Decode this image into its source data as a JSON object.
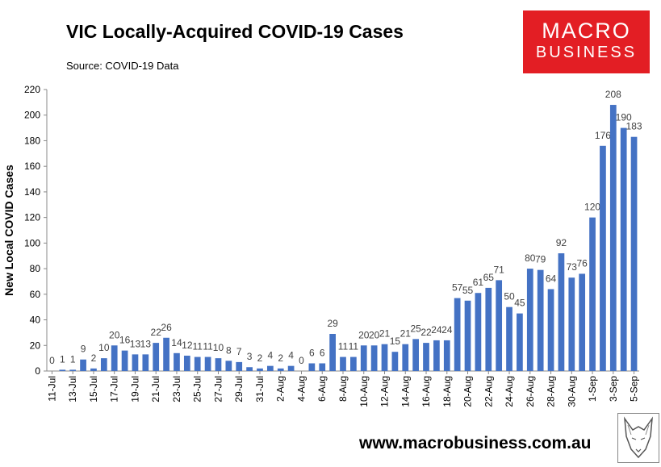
{
  "header": {
    "title": "VIC Locally-Acquired COVID-19 Cases",
    "source": "Source: COVID-19 Data"
  },
  "logo": {
    "line1": "MACRO",
    "line2": "BUSINESS",
    "color": "#e31e24"
  },
  "footer": {
    "url": "www.macrobusiness.com.au"
  },
  "chart_data": {
    "type": "bar",
    "title": "VIC Locally-Acquired COVID-19 Cases",
    "xlabel": "",
    "ylabel": "New Local COVID Cases",
    "ylim": [
      0,
      220
    ],
    "yticks": [
      0,
      20,
      40,
      60,
      80,
      100,
      120,
      140,
      160,
      180,
      200,
      220
    ],
    "bar_color": "#4472c4",
    "categories": [
      "11-Jul",
      "12-Jul",
      "13-Jul",
      "14-Jul",
      "15-Jul",
      "16-Jul",
      "17-Jul",
      "18-Jul",
      "19-Jul",
      "20-Jul",
      "21-Jul",
      "22-Jul",
      "23-Jul",
      "24-Jul",
      "25-Jul",
      "26-Jul",
      "27-Jul",
      "28-Jul",
      "29-Jul",
      "30-Jul",
      "31-Jul",
      "1-Aug",
      "2-Aug",
      "3-Aug",
      "4-Aug",
      "5-Aug",
      "6-Aug",
      "7-Aug",
      "8-Aug",
      "9-Aug",
      "10-Aug",
      "11-Aug",
      "12-Aug",
      "13-Aug",
      "14-Aug",
      "15-Aug",
      "16-Aug",
      "17-Aug",
      "18-Aug",
      "19-Aug",
      "20-Aug",
      "21-Aug",
      "22-Aug",
      "23-Aug",
      "24-Aug",
      "25-Aug",
      "26-Aug",
      "27-Aug",
      "28-Aug",
      "29-Aug",
      "30-Aug",
      "31-Aug",
      "1-Sep",
      "2-Sep",
      "3-Sep",
      "4-Sep",
      "5-Sep"
    ],
    "tick_labels": [
      "11-Jul",
      "13-Jul",
      "15-Jul",
      "17-Jul",
      "19-Jul",
      "21-Jul",
      "23-Jul",
      "25-Jul",
      "27-Jul",
      "29-Jul",
      "31-Jul",
      "2-Aug",
      "4-Aug",
      "6-Aug",
      "8-Aug",
      "10-Aug",
      "12-Aug",
      "14-Aug",
      "16-Aug",
      "18-Aug",
      "20-Aug",
      "22-Aug",
      "24-Aug",
      "26-Aug",
      "28-Aug",
      "30-Aug",
      "1-Sep",
      "3-Sep",
      "5-Sep"
    ],
    "values": [
      0,
      1,
      1,
      9,
      2,
      10,
      20,
      16,
      13,
      13,
      22,
      26,
      14,
      12,
      11,
      11,
      10,
      8,
      7,
      3,
      2,
      4,
      2,
      4,
      0,
      6,
      6,
      29,
      11,
      11,
      20,
      20,
      21,
      15,
      21,
      25,
      22,
      24,
      24,
      57,
      55,
      61,
      65,
      71,
      50,
      45,
      80,
      79,
      64,
      92,
      73,
      76,
      120,
      176,
      208,
      190,
      183
    ]
  }
}
